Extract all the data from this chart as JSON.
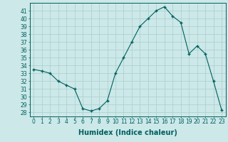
{
  "x": [
    0,
    1,
    2,
    3,
    4,
    5,
    6,
    7,
    8,
    9,
    10,
    11,
    12,
    13,
    14,
    15,
    16,
    17,
    18,
    19,
    20,
    21,
    22,
    23
  ],
  "y": [
    33.5,
    33.3,
    33.0,
    32.0,
    31.5,
    31.0,
    28.5,
    28.2,
    28.5,
    29.5,
    33.0,
    35.0,
    37.0,
    39.0,
    40.0,
    41.0,
    41.5,
    40.3,
    39.5,
    35.5,
    36.5,
    35.5,
    32.0,
    28.3
  ],
  "xlabel": "Humidex (Indice chaleur)",
  "ylim": [
    27.5,
    42
  ],
  "xlim": [
    -0.5,
    23.5
  ],
  "yticks": [
    28,
    29,
    30,
    31,
    32,
    33,
    34,
    35,
    36,
    37,
    38,
    39,
    40,
    41
  ],
  "xticks": [
    0,
    1,
    2,
    3,
    4,
    5,
    6,
    7,
    8,
    9,
    10,
    11,
    12,
    13,
    14,
    15,
    16,
    17,
    18,
    19,
    20,
    21,
    22,
    23
  ],
  "line_color": "#005f5f",
  "marker": "+",
  "marker_size": 3.5,
  "marker_lw": 1.0,
  "bg_color": "#cce8e8",
  "grid_color": "#aacece",
  "tick_label_fontsize": 5.5,
  "xlabel_fontsize": 7.0
}
